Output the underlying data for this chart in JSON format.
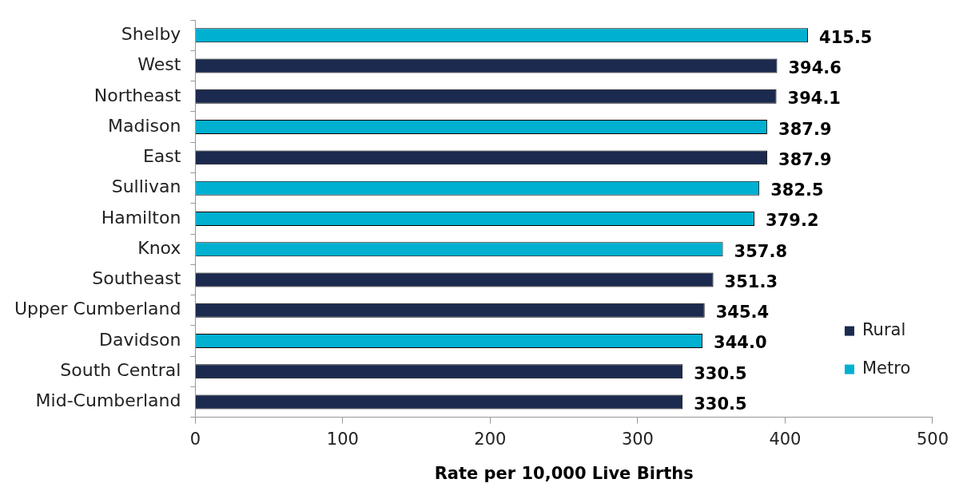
{
  "chart_data": {
    "type": "bar",
    "orientation": "horizontal",
    "stacked": true,
    "xlabel": "Rate per 10,000 Live Births",
    "categories": [
      "Shelby",
      "West",
      "Northeast",
      "Madison",
      "East",
      "Sullivan",
      "Hamilton",
      "Knox",
      "Southeast",
      "Upper Cumberland",
      "Davidson",
      "South Central",
      "Mid-Cumberland"
    ],
    "series": [
      {
        "name": "Rural",
        "color": "#1b2a4e",
        "values": [
          null,
          394.6,
          394.1,
          null,
          387.9,
          null,
          null,
          null,
          351.3,
          345.4,
          null,
          330.5,
          330.5
        ],
        "value_labels": [
          null,
          "394.6",
          "394.1",
          null,
          "387.9",
          null,
          null,
          null,
          "351.3",
          "345.4",
          null,
          "330.5",
          "330.5"
        ]
      },
      {
        "name": "Metro",
        "color": "#00b0d0",
        "values": [
          415.5,
          null,
          null,
          387.9,
          null,
          382.5,
          379.2,
          357.8,
          null,
          null,
          344.0,
          null,
          null
        ],
        "value_labels": [
          "415.5",
          null,
          null,
          "387.9",
          null,
          "382.5",
          "379.2",
          "357.8",
          null,
          null,
          "344.0",
          null,
          null
        ]
      }
    ],
    "xlim": [
      0,
      500
    ],
    "xticks": [
      0,
      100,
      200,
      300,
      400,
      500
    ],
    "grid": false,
    "legend": "bottom right"
  }
}
